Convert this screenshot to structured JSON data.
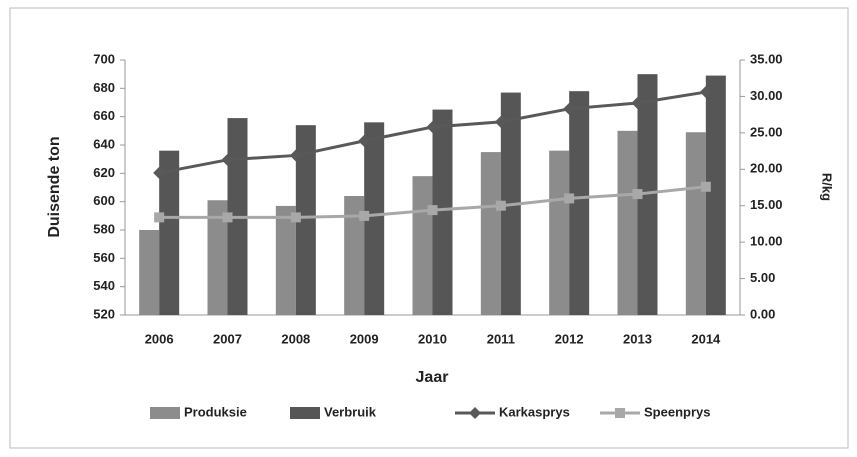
{
  "chart_data": {
    "type": "bar",
    "x_label": "Jaar",
    "y_label": "Duisende ton",
    "y2_label": "R/kg",
    "categories": [
      "2006",
      "2007",
      "2008",
      "2009",
      "2010",
      "2011",
      "2012",
      "2013",
      "2014"
    ],
    "series": [
      {
        "name": "Produksie",
        "type": "bar",
        "color": "#8c8c8c",
        "values": [
          580,
          601,
          597,
          604,
          618,
          635,
          636,
          650,
          649
        ]
      },
      {
        "name": "Verbruik",
        "type": "bar",
        "color": "#565656",
        "values": [
          636,
          659,
          654,
          656,
          665,
          677,
          678,
          690,
          689
        ]
      },
      {
        "name": "Karkasprys",
        "type": "line",
        "marker": "diamond",
        "axis": "y2",
        "color": "#595959",
        "values": [
          19.5,
          21.3,
          21.9,
          23.9,
          25.8,
          26.5,
          28.3,
          29.1,
          30.6
        ]
      },
      {
        "name": "Speenprys",
        "type": "line",
        "marker": "square",
        "axis": "y2",
        "color": "#a8a8a8",
        "values": [
          13.4,
          13.4,
          13.4,
          13.6,
          14.4,
          15.0,
          16.0,
          16.6,
          17.6
        ]
      }
    ],
    "ylim": [
      520,
      700
    ],
    "yticks": [
      520,
      540,
      560,
      580,
      600,
      620,
      640,
      660,
      680,
      700
    ],
    "y2lim": [
      0,
      35
    ],
    "y2ticks": [
      {
        "value": 0,
        "label": "0.00"
      },
      {
        "value": 5,
        "label": "5.00"
      },
      {
        "value": 10,
        "label": "10.00"
      },
      {
        "value": 15,
        "label": "15.00"
      },
      {
        "value": 20,
        "label": "20.00"
      },
      {
        "value": 25,
        "label": "25.00"
      },
      {
        "value": 30,
        "label": "30.00"
      },
      {
        "value": 35,
        "label": "35.00"
      }
    ],
    "legend": "bottom",
    "grid": false
  }
}
